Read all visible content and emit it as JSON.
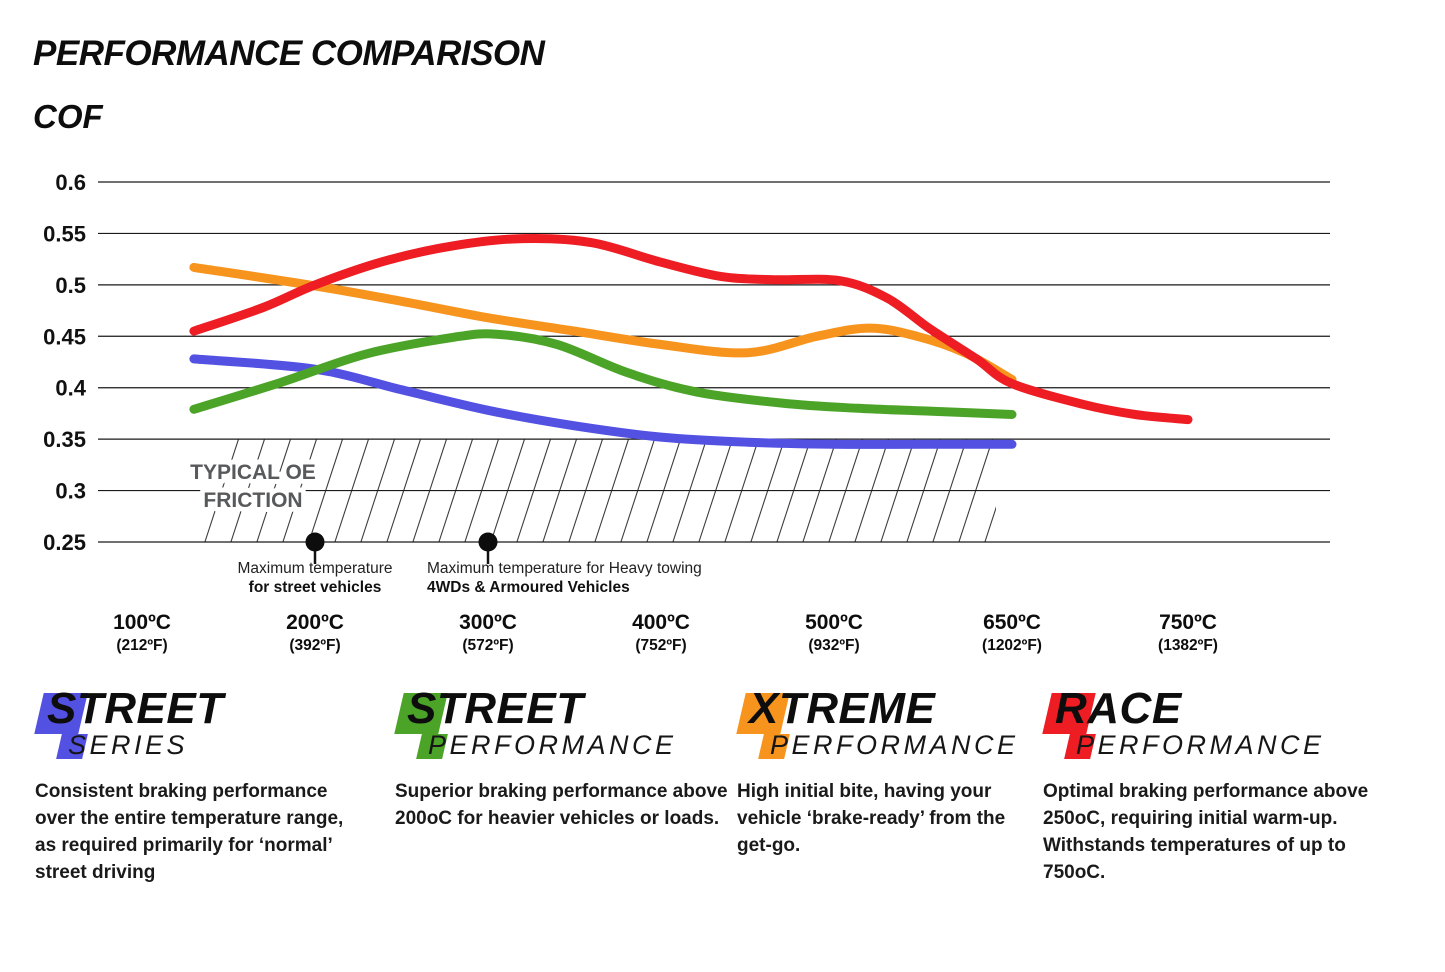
{
  "header": {
    "title": "PERFORMANCE COMPARISON",
    "y_axis_title": "COF"
  },
  "chart_data": {
    "type": "line",
    "title": "PERFORMANCE COMPARISON",
    "ylabel": "COF",
    "ylim": [
      0.25,
      0.6
    ],
    "grid": true,
    "yticks": [
      {
        "value": 0.6,
        "label": "0.6"
      },
      {
        "value": 0.55,
        "label": "0.55"
      },
      {
        "value": 0.5,
        "label": "0.5"
      },
      {
        "value": 0.45,
        "label": "0.45"
      },
      {
        "value": 0.4,
        "label": "0.4"
      },
      {
        "value": 0.35,
        "label": "0.35"
      },
      {
        "value": 0.3,
        "label": "0.3"
      },
      {
        "value": 0.25,
        "label": "0.25"
      }
    ],
    "x_ticks": [
      {
        "temp": 100,
        "label_c": "100ºC",
        "label_f": "(212ºF)"
      },
      {
        "temp": 200,
        "label_c": "200ºC",
        "label_f": "(392ºF)"
      },
      {
        "temp": 300,
        "label_c": "300ºC",
        "label_f": "(572ºF)"
      },
      {
        "temp": 400,
        "label_c": "400ºC",
        "label_f": "(752ºF)"
      },
      {
        "temp": 500,
        "label_c": "500ºC",
        "label_f": "(932ºF)"
      },
      {
        "temp": 650,
        "label_c": "650ºC",
        "label_f": "(1202ºF)"
      },
      {
        "temp": 750,
        "label_c": "750ºC",
        "label_f": "(1382ºF)"
      }
    ],
    "series": [
      {
        "name": "Street Series",
        "color": "#5351e2",
        "points": [
          [
            130,
            0.428
          ],
          [
            200,
            0.418
          ],
          [
            250,
            0.398
          ],
          [
            300,
            0.378
          ],
          [
            350,
            0.363
          ],
          [
            400,
            0.352
          ],
          [
            450,
            0.347
          ],
          [
            500,
            0.345
          ],
          [
            575,
            0.345
          ],
          [
            650,
            0.345
          ]
        ]
      },
      {
        "name": "Street Performance",
        "color": "#4ba428",
        "points": [
          [
            130,
            0.379
          ],
          [
            180,
            0.405
          ],
          [
            230,
            0.433
          ],
          [
            280,
            0.449
          ],
          [
            305,
            0.452
          ],
          [
            340,
            0.442
          ],
          [
            380,
            0.415
          ],
          [
            420,
            0.396
          ],
          [
            470,
            0.385
          ],
          [
            520,
            0.38
          ],
          [
            585,
            0.377
          ],
          [
            650,
            0.374
          ]
        ]
      },
      {
        "name": "Xtreme Performance",
        "color": "#f7941e",
        "points": [
          [
            130,
            0.517
          ],
          [
            200,
            0.499
          ],
          [
            250,
            0.484
          ],
          [
            300,
            0.468
          ],
          [
            350,
            0.455
          ],
          [
            400,
            0.442
          ],
          [
            450,
            0.434
          ],
          [
            490,
            0.45
          ],
          [
            530,
            0.458
          ],
          [
            570,
            0.45
          ],
          [
            610,
            0.434
          ],
          [
            650,
            0.408
          ]
        ]
      },
      {
        "name": "Race Performance",
        "color": "#ee1c23",
        "points": [
          [
            130,
            0.455
          ],
          [
            170,
            0.478
          ],
          [
            200,
            0.5
          ],
          [
            240,
            0.523
          ],
          [
            280,
            0.538
          ],
          [
            320,
            0.545
          ],
          [
            360,
            0.541
          ],
          [
            400,
            0.522
          ],
          [
            435,
            0.508
          ],
          [
            465,
            0.505
          ],
          [
            505,
            0.504
          ],
          [
            545,
            0.487
          ],
          [
            580,
            0.458
          ],
          [
            620,
            0.428
          ],
          [
            650,
            0.404
          ],
          [
            690,
            0.384
          ],
          [
            720,
            0.374
          ],
          [
            750,
            0.369
          ]
        ]
      }
    ],
    "oe_band": {
      "label_line1": "TYPICAL OE",
      "label_line2": "FRICTION",
      "label_color": "#58595b",
      "value_from": 0.25,
      "value_to": 0.35,
      "temp_from": 130,
      "temp_to": 650
    },
    "annotations": [
      {
        "temp": 200,
        "value": 0.25,
        "align": "center",
        "line1": "Maximum temperature",
        "line2": "for street vehicles"
      },
      {
        "temp": 300,
        "value": 0.25,
        "align": "left",
        "line1": "Maximum temperature for Heavy towing",
        "line2": "4WDs & Armoured Vehicles"
      }
    ]
  },
  "legend": [
    {
      "l1_first": "S",
      "l1_rest": "TREET",
      "l2_first": "S",
      "l2_rest": "ERIES",
      "color": "#5351e2",
      "description": "Consistent braking performance over the entire temperature range, as required primarily for ‘normal’ street driving"
    },
    {
      "l1_first": "S",
      "l1_rest": "TREET",
      "l2_first": "P",
      "l2_rest": "ERFORMANCE",
      "color": "#4ba428",
      "description": "Superior braking performance above 200oC for heavier vehicles or loads."
    },
    {
      "l1_first": "X",
      "l1_rest": "TREME",
      "l2_first": "P",
      "l2_rest": "ERFORMANCE",
      "color": "#f7941e",
      "description": "High initial bite, having your vehicle ‘brake-ready’ from the get-go."
    },
    {
      "l1_first": "R",
      "l1_rest": "ACE",
      "l2_first": "P",
      "l2_rest": "ERFORMANCE",
      "color": "#ee1c23",
      "description": "Optimal braking performance above 250oC, requiring initial warm-up. Withstands temperatures of up to 750oC."
    }
  ]
}
